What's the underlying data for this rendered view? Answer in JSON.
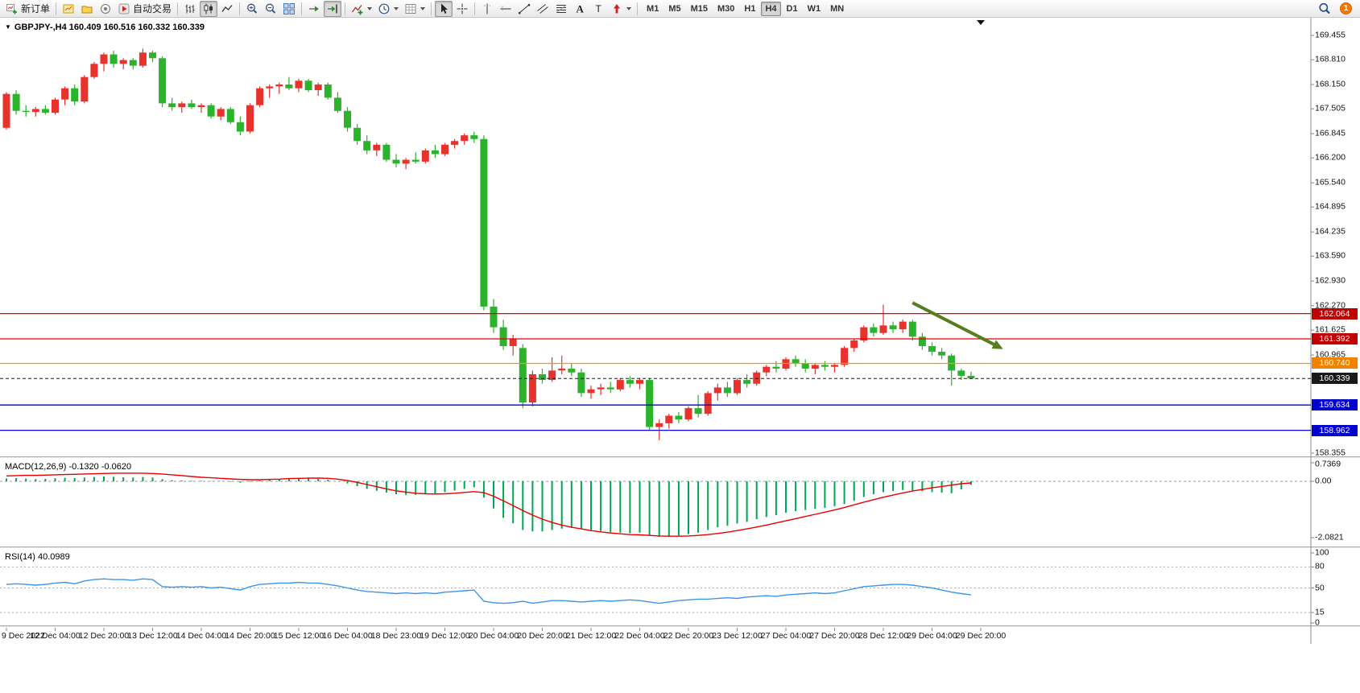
{
  "toolbar": {
    "new_order_label": "新订单",
    "autotrade_label": "自动交易",
    "notification_count": "1",
    "timeframes": {
      "labels": [
        "M1",
        "M5",
        "M15",
        "M30",
        "H1",
        "H4",
        "D1",
        "W1",
        "MN"
      ],
      "active": "H4"
    },
    "items": [
      {
        "type": "button",
        "name": "new-order-button",
        "icon": "new-order",
        "label_key": "new_order_label"
      },
      {
        "type": "sep"
      },
      {
        "type": "button",
        "name": "new-chart-button",
        "icon": "new-chart"
      },
      {
        "type": "button",
        "name": "profiles-button",
        "icon": "profiles"
      },
      {
        "type": "button",
        "name": "sound-button",
        "icon": "sound"
      },
      {
        "type": "button",
        "name": "autotrade-button",
        "icon": "autotrade",
        "label_key": "autotrade_label"
      },
      {
        "type": "sep"
      },
      {
        "type": "button",
        "name": "bar-chart-button",
        "icon": "bar-chart"
      },
      {
        "type": "button",
        "name": "candlestick-button",
        "icon": "candles",
        "active": true
      },
      {
        "type": "button",
        "name": "line-chart-button",
        "icon": "line-chart"
      },
      {
        "type": "sep"
      },
      {
        "type": "button",
        "name": "zoom-in-button",
        "icon": "zoom-in"
      },
      {
        "type": "button",
        "name": "zoom-out-button",
        "icon": "zoom-out"
      },
      {
        "type": "button",
        "name": "tile-windows-button",
        "icon": "tile"
      },
      {
        "type": "sep"
      },
      {
        "type": "button",
        "name": "auto-scroll-button",
        "icon": "auto-scroll"
      },
      {
        "type": "button",
        "name": "chart-shift-button",
        "icon": "chart-shift",
        "active": true
      },
      {
        "type": "sep"
      },
      {
        "type": "button",
        "name": "indicators-button",
        "icon": "indicators",
        "dropdown": true
      },
      {
        "type": "button",
        "name": "periods-button",
        "icon": "clock",
        "dropdown": true
      },
      {
        "type": "button",
        "name": "templates-button",
        "icon": "templates",
        "dropdown": true
      },
      {
        "type": "sep"
      },
      {
        "type": "button",
        "name": "cursor-button",
        "icon": "cursor",
        "active": true
      },
      {
        "type": "button",
        "name": "crosshair-button",
        "icon": "crosshair"
      },
      {
        "type": "sep"
      },
      {
        "type": "button",
        "name": "vertical-line-button",
        "icon": "vline"
      },
      {
        "type": "button",
        "name": "horizontal-line-button",
        "icon": "hline"
      },
      {
        "type": "button",
        "name": "trendline-button",
        "icon": "trendline"
      },
      {
        "type": "button",
        "name": "equidistant-channel-button",
        "icon": "channel"
      },
      {
        "type": "button",
        "name": "fibonacci-button",
        "icon": "fibo"
      },
      {
        "type": "button",
        "name": "text-button",
        "icon": "text"
      },
      {
        "type": "button",
        "name": "text-label-button",
        "icon": "label"
      },
      {
        "type": "button",
        "name": "arrows-button",
        "icon": "arrows",
        "dropdown": true
      },
      {
        "type": "sep"
      },
      {
        "type": "timeframes"
      }
    ]
  },
  "chart": {
    "symbol_label": "GBPJPY-,H4",
    "ohlc_label": "160.409 160.516 160.332 160.339",
    "price_axis": [
      "169.455",
      "168.810",
      "168.150",
      "167.505",
      "166.845",
      "166.200",
      "165.540",
      "164.895",
      "164.235",
      "163.590",
      "162.930",
      "162.270",
      "161.625",
      "160.965",
      "158.355"
    ]
  },
  "macd": {
    "label": "MACD(12,26,9) -0.1320 -0.0620",
    "axis": [
      "0.7369",
      "0.00",
      "-2.0821"
    ]
  },
  "rsi": {
    "label": "RSI(14) 40.0989",
    "axis": [
      "100",
      "80",
      "50",
      "15",
      "0"
    ]
  },
  "time_axis": [
    "9 Dec 2022",
    "12 Dec 04:00",
    "12 Dec 20:00",
    "13 Dec 12:00",
    "14 Dec 04:00",
    "14 Dec 20:00",
    "15 Dec 12:00",
    "16 Dec 04:00",
    "18 Dec 23:00",
    "19 Dec 12:00",
    "20 Dec 04:00",
    "20 Dec 20:00",
    "21 Dec 12:00",
    "22 Dec 04:00",
    "22 Dec 20:00",
    "23 Dec 12:00",
    "27 Dec 04:00",
    "27 Dec 20:00",
    "28 Dec 12:00",
    "29 Dec 04:00",
    "29 Dec 20:00"
  ],
  "chart_data": {
    "type": "candlestick",
    "symbol": "GBPJPY-",
    "timeframe": "H4",
    "ohlc_current": {
      "open": 160.409,
      "high": 160.516,
      "low": 160.332,
      "close": 160.339
    },
    "price_axis_range": [
      158.355,
      169.455
    ],
    "colors": {
      "bull": "#e8332d",
      "bear": "#2bb32b",
      "macd_histogram": "#00a651",
      "macd_signal": "#e80000",
      "rsi_line": "#3d95e8",
      "current": "#1a1a1a"
    },
    "hlines": [
      {
        "value": 162.064,
        "label": "162.064",
        "color": "#e60000",
        "badge": "#c00000"
      },
      {
        "value": 161.392,
        "label": "161.392",
        "color": "#e60000",
        "badge": "#c00000"
      },
      {
        "value": 160.74,
        "label": "160.740",
        "color": "#ff9500",
        "badge": "#f08200"
      },
      {
        "value": 159.634,
        "label": "159.634",
        "color": "#0000e0",
        "badge": "#0000cc"
      },
      {
        "value": 158.962,
        "label": "158.962",
        "color": "#0000e0",
        "badge": "#0000cc"
      }
    ],
    "current": {
      "value": 160.339,
      "label": "160.339"
    },
    "annotation": {
      "type": "arrow",
      "color": "#567d1e",
      "from": {
        "bar": 93,
        "price": 162.35
      },
      "to": {
        "bar": 102.3,
        "price": 161.12
      }
    },
    "candles": [
      [
        167.0,
        167.95,
        166.95,
        167.9
      ],
      [
        167.9,
        168.0,
        167.35,
        167.45
      ],
      [
        167.45,
        167.6,
        167.3,
        167.42
      ],
      [
        167.42,
        167.55,
        167.3,
        167.5
      ],
      [
        167.5,
        167.6,
        167.35,
        167.4
      ],
      [
        167.4,
        167.8,
        167.35,
        167.75
      ],
      [
        167.75,
        168.1,
        167.6,
        168.05
      ],
      [
        168.05,
        168.15,
        167.6,
        167.7
      ],
      [
        167.7,
        168.4,
        167.65,
        168.35
      ],
      [
        168.35,
        168.75,
        168.3,
        168.7
      ],
      [
        168.7,
        169.0,
        168.5,
        168.95
      ],
      [
        168.95,
        169.05,
        168.6,
        168.7
      ],
      [
        168.7,
        168.85,
        168.55,
        168.8
      ],
      [
        168.8,
        168.85,
        168.55,
        168.65
      ],
      [
        168.65,
        169.1,
        168.6,
        169.0
      ],
      [
        169.0,
        169.05,
        168.75,
        168.85
      ],
      [
        168.85,
        168.9,
        167.55,
        167.65
      ],
      [
        167.65,
        167.8,
        167.45,
        167.55
      ],
      [
        167.55,
        167.7,
        167.4,
        167.65
      ],
      [
        167.65,
        167.75,
        167.5,
        167.55
      ],
      [
        167.55,
        167.65,
        167.4,
        167.6
      ],
      [
        167.6,
        167.65,
        167.25,
        167.3
      ],
      [
        167.3,
        167.55,
        167.2,
        167.5
      ],
      [
        167.5,
        167.55,
        167.1,
        167.15
      ],
      [
        167.15,
        167.3,
        166.8,
        166.9
      ],
      [
        166.9,
        167.65,
        166.85,
        167.6
      ],
      [
        167.6,
        168.1,
        167.55,
        168.05
      ],
      [
        168.05,
        168.15,
        167.8,
        168.1
      ],
      [
        168.1,
        168.2,
        167.9,
        168.15
      ],
      [
        168.15,
        168.35,
        168.0,
        168.05
      ],
      [
        168.05,
        168.3,
        167.95,
        168.25
      ],
      [
        168.25,
        168.3,
        167.95,
        168.0
      ],
      [
        168.0,
        168.2,
        167.85,
        168.15
      ],
      [
        168.15,
        168.2,
        167.75,
        167.8
      ],
      [
        167.8,
        167.95,
        167.4,
        167.45
      ],
      [
        167.45,
        167.55,
        166.9,
        167.0
      ],
      [
        167.0,
        167.1,
        166.55,
        166.65
      ],
      [
        166.65,
        166.8,
        166.3,
        166.4
      ],
      [
        166.4,
        166.6,
        166.25,
        166.55
      ],
      [
        166.55,
        166.6,
        166.1,
        166.15
      ],
      [
        166.15,
        166.3,
        165.95,
        166.05
      ],
      [
        166.05,
        166.2,
        165.9,
        166.15
      ],
      [
        166.15,
        166.35,
        166.05,
        166.1
      ],
      [
        166.1,
        166.45,
        166.05,
        166.4
      ],
      [
        166.4,
        166.55,
        166.2,
        166.3
      ],
      [
        166.3,
        166.6,
        166.25,
        166.55
      ],
      [
        166.55,
        166.7,
        166.45,
        166.65
      ],
      [
        166.65,
        166.85,
        166.55,
        166.8
      ],
      [
        166.8,
        166.9,
        166.6,
        166.7
      ],
      [
        166.7,
        166.8,
        162.15,
        162.25
      ],
      [
        162.25,
        162.45,
        161.55,
        161.7
      ],
      [
        161.7,
        161.9,
        161.1,
        161.2
      ],
      [
        161.2,
        161.5,
        160.95,
        161.4
      ],
      [
        161.15,
        161.25,
        159.55,
        159.7
      ],
      [
        159.7,
        160.55,
        159.6,
        160.45
      ],
      [
        160.45,
        160.6,
        160.2,
        160.3
      ],
      [
        160.3,
        160.9,
        160.25,
        160.55
      ],
      [
        160.55,
        160.95,
        160.45,
        160.6
      ],
      [
        160.6,
        160.75,
        160.4,
        160.5
      ],
      [
        160.5,
        160.6,
        159.85,
        159.95
      ],
      [
        159.95,
        160.15,
        159.8,
        160.05
      ],
      [
        160.05,
        160.2,
        159.9,
        160.1
      ],
      [
        160.1,
        160.25,
        159.95,
        160.05
      ],
      [
        160.05,
        160.35,
        160.0,
        160.3
      ],
      [
        160.3,
        160.4,
        160.1,
        160.2
      ],
      [
        160.2,
        160.35,
        160.05,
        160.3
      ],
      [
        160.3,
        160.35,
        158.95,
        159.05
      ],
      [
        159.05,
        159.25,
        158.7,
        159.15
      ],
      [
        159.15,
        159.4,
        159.0,
        159.35
      ],
      [
        159.35,
        159.45,
        159.15,
        159.25
      ],
      [
        159.25,
        159.6,
        159.2,
        159.55
      ],
      [
        159.55,
        159.9,
        159.3,
        159.4
      ],
      [
        159.4,
        160.0,
        159.35,
        159.95
      ],
      [
        159.95,
        160.2,
        159.75,
        160.1
      ],
      [
        160.1,
        160.25,
        159.85,
        159.95
      ],
      [
        159.95,
        160.35,
        159.9,
        160.3
      ],
      [
        160.3,
        160.45,
        160.1,
        160.2
      ],
      [
        160.2,
        160.55,
        160.15,
        160.5
      ],
      [
        160.5,
        160.7,
        160.4,
        160.65
      ],
      [
        160.65,
        160.8,
        160.5,
        160.6
      ],
      [
        160.6,
        160.9,
        160.55,
        160.85
      ],
      [
        160.85,
        160.95,
        160.65,
        160.75
      ],
      [
        160.75,
        160.85,
        160.5,
        160.6
      ],
      [
        160.6,
        160.75,
        160.45,
        160.7
      ],
      [
        160.7,
        160.8,
        160.55,
        160.65
      ],
      [
        160.65,
        160.75,
        160.5,
        160.7
      ],
      [
        160.7,
        161.2,
        160.65,
        161.15
      ],
      [
        161.15,
        161.4,
        161.05,
        161.35
      ],
      [
        161.35,
        161.75,
        161.3,
        161.7
      ],
      [
        161.7,
        161.8,
        161.45,
        161.55
      ],
      [
        161.55,
        162.3,
        161.5,
        161.75
      ],
      [
        161.75,
        161.85,
        161.55,
        161.65
      ],
      [
        161.65,
        161.9,
        161.55,
        161.85
      ],
      [
        161.85,
        161.9,
        161.35,
        161.45
      ],
      [
        161.45,
        161.55,
        161.1,
        161.2
      ],
      [
        161.2,
        161.3,
        160.95,
        161.05
      ],
      [
        161.05,
        161.15,
        160.85,
        160.95
      ],
      [
        160.95,
        161.0,
        160.15,
        160.55
      ],
      [
        160.55,
        160.6,
        160.3,
        160.41
      ],
      [
        160.41,
        160.52,
        160.33,
        160.34
      ]
    ],
    "macd": {
      "histogram": [
        0.1,
        0.12,
        0.1,
        0.08,
        0.09,
        0.11,
        0.13,
        0.12,
        0.14,
        0.16,
        0.18,
        0.17,
        0.15,
        0.14,
        0.16,
        0.14,
        0.08,
        0.04,
        0.03,
        0.02,
        0.02,
        0.01,
        0.01,
        -0.02,
        -0.05,
        -0.02,
        0.03,
        0.06,
        0.09,
        0.1,
        0.11,
        0.1,
        0.09,
        0.06,
        0.0,
        -0.08,
        -0.18,
        -0.28,
        -0.35,
        -0.42,
        -0.48,
        -0.5,
        -0.5,
        -0.48,
        -0.45,
        -0.4,
        -0.34,
        -0.28,
        -0.22,
        -0.6,
        -1.0,
        -1.35,
        -1.55,
        -1.8,
        -1.85,
        -1.85,
        -1.8,
        -1.75,
        -1.72,
        -1.76,
        -1.8,
        -1.84,
        -1.88,
        -1.9,
        -1.92,
        -1.9,
        -2.0,
        -2.05,
        -2.05,
        -2.0,
        -1.95,
        -1.9,
        -1.8,
        -1.7,
        -1.64,
        -1.56,
        -1.5,
        -1.4,
        -1.32,
        -1.25,
        -1.16,
        -1.1,
        -1.06,
        -1.02,
        -0.98,
        -0.92,
        -0.84,
        -0.72,
        -0.58,
        -0.48,
        -0.4,
        -0.36,
        -0.32,
        -0.34,
        -0.37,
        -0.4,
        -0.42,
        -0.44,
        -0.3,
        -0.13
      ],
      "signal": [
        0.2,
        0.21,
        0.22,
        0.22,
        0.23,
        0.24,
        0.25,
        0.26,
        0.27,
        0.28,
        0.29,
        0.3,
        0.3,
        0.3,
        0.3,
        0.29,
        0.27,
        0.24,
        0.21,
        0.18,
        0.15,
        0.13,
        0.11,
        0.09,
        0.07,
        0.06,
        0.06,
        0.07,
        0.08,
        0.1,
        0.11,
        0.12,
        0.12,
        0.11,
        0.08,
        0.03,
        -0.04,
        -0.12,
        -0.2,
        -0.28,
        -0.35,
        -0.4,
        -0.44,
        -0.46,
        -0.47,
        -0.46,
        -0.44,
        -0.41,
        -0.38,
        -0.42,
        -0.55,
        -0.72,
        -0.9,
        -1.08,
        -1.25,
        -1.4,
        -1.52,
        -1.62,
        -1.7,
        -1.76,
        -1.82,
        -1.87,
        -1.91,
        -1.94,
        -1.97,
        -1.98,
        -2.0,
        -2.02,
        -2.03,
        -2.03,
        -2.02,
        -2.0,
        -1.97,
        -1.93,
        -1.88,
        -1.82,
        -1.76,
        -1.69,
        -1.62,
        -1.54,
        -1.46,
        -1.38,
        -1.3,
        -1.22,
        -1.14,
        -1.06,
        -0.97,
        -0.87,
        -0.77,
        -0.68,
        -0.59,
        -0.51,
        -0.43,
        -0.36,
        -0.3,
        -0.24,
        -0.19,
        -0.14,
        -0.09,
        -0.06
      ]
    },
    "rsi": {
      "values": [
        55,
        56,
        55,
        54,
        55,
        57,
        58,
        56,
        60,
        62,
        63,
        62,
        62,
        61,
        63,
        62,
        52,
        51,
        52,
        51,
        52,
        50,
        51,
        49,
        47,
        52,
        55,
        56,
        57,
        57,
        58,
        57,
        57,
        55,
        53,
        50,
        47,
        45,
        44,
        43,
        42,
        43,
        42,
        43,
        42,
        44,
        45,
        46,
        47,
        31,
        29,
        28,
        29,
        31,
        28,
        30,
        32,
        32,
        31,
        30,
        31,
        32,
        31,
        32,
        33,
        32,
        30,
        28,
        30,
        32,
        33,
        34,
        34,
        35,
        36,
        35,
        37,
        38,
        39,
        38,
        40,
        41,
        42,
        43,
        42,
        43,
        46,
        49,
        52,
        53,
        54,
        55,
        55,
        54,
        52,
        50,
        47,
        44,
        42,
        40.1
      ]
    }
  }
}
